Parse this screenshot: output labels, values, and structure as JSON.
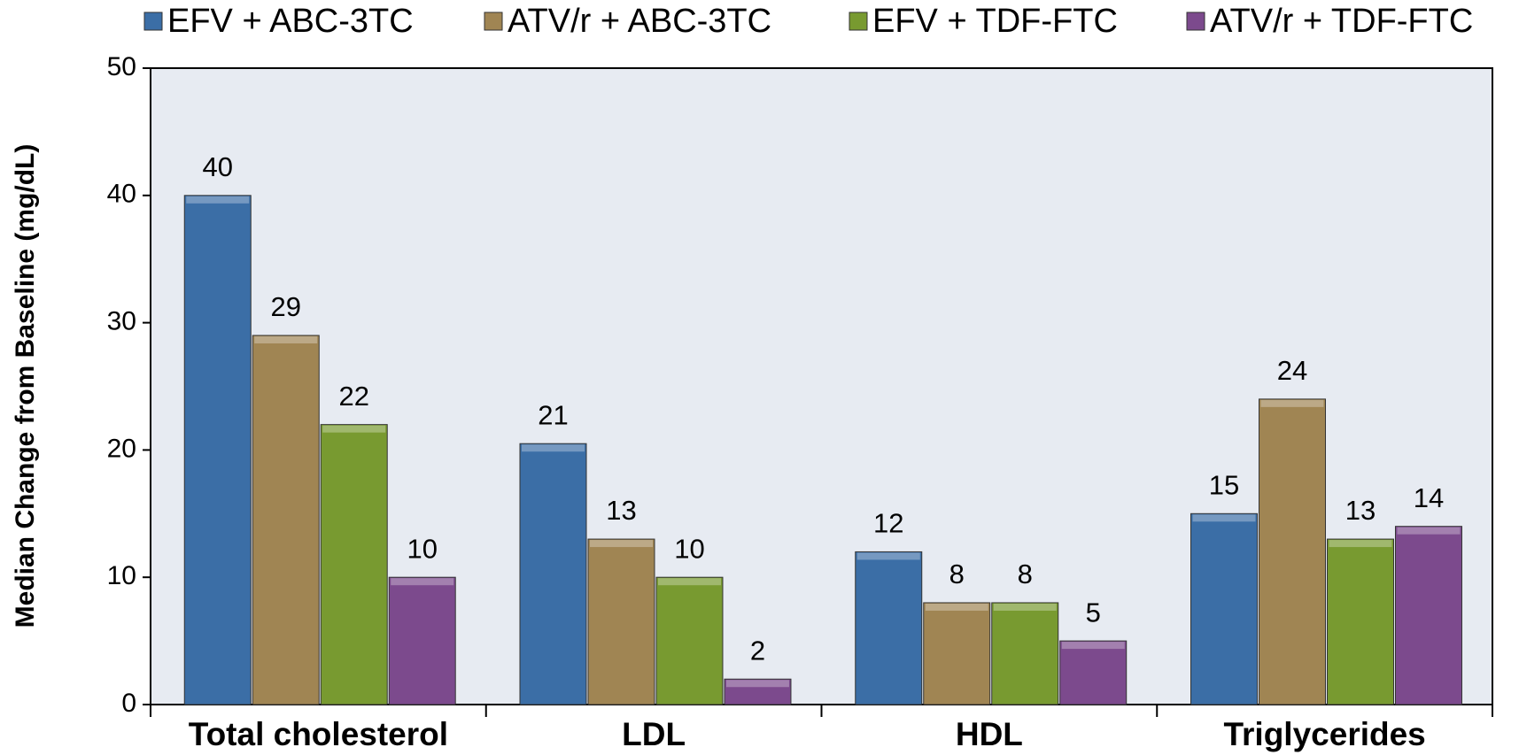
{
  "chart_data": {
    "type": "bar",
    "y_label": "Median Change from Baseline  (mg/dL)",
    "categories": [
      "Total cholesterol",
      "LDL",
      "HDL",
      "Triglycerides"
    ],
    "series": [
      {
        "name": "EFV + ABC-3TC",
        "color": "#3b6ea6",
        "values": [
          40,
          20.5,
          12,
          15
        ],
        "value_labels": [
          "40",
          "21",
          "12",
          "15"
        ]
      },
      {
        "name": "ATV/r + ABC-3TC",
        "color": "#a08553",
        "values": [
          29,
          13,
          8,
          24
        ]
      },
      {
        "name": "EFV + TDF-FTC",
        "color": "#789a30",
        "values": [
          22,
          10,
          8,
          13
        ]
      },
      {
        "name": "ATV/r + TDF-FTC",
        "color": "#7c4a8d",
        "values": [
          10,
          2,
          5,
          14
        ]
      }
    ],
    "ylim": [
      0,
      50
    ],
    "yticks": [
      0,
      10,
      20,
      30,
      40,
      50
    ],
    "plot_background": "#e7ebf2"
  }
}
